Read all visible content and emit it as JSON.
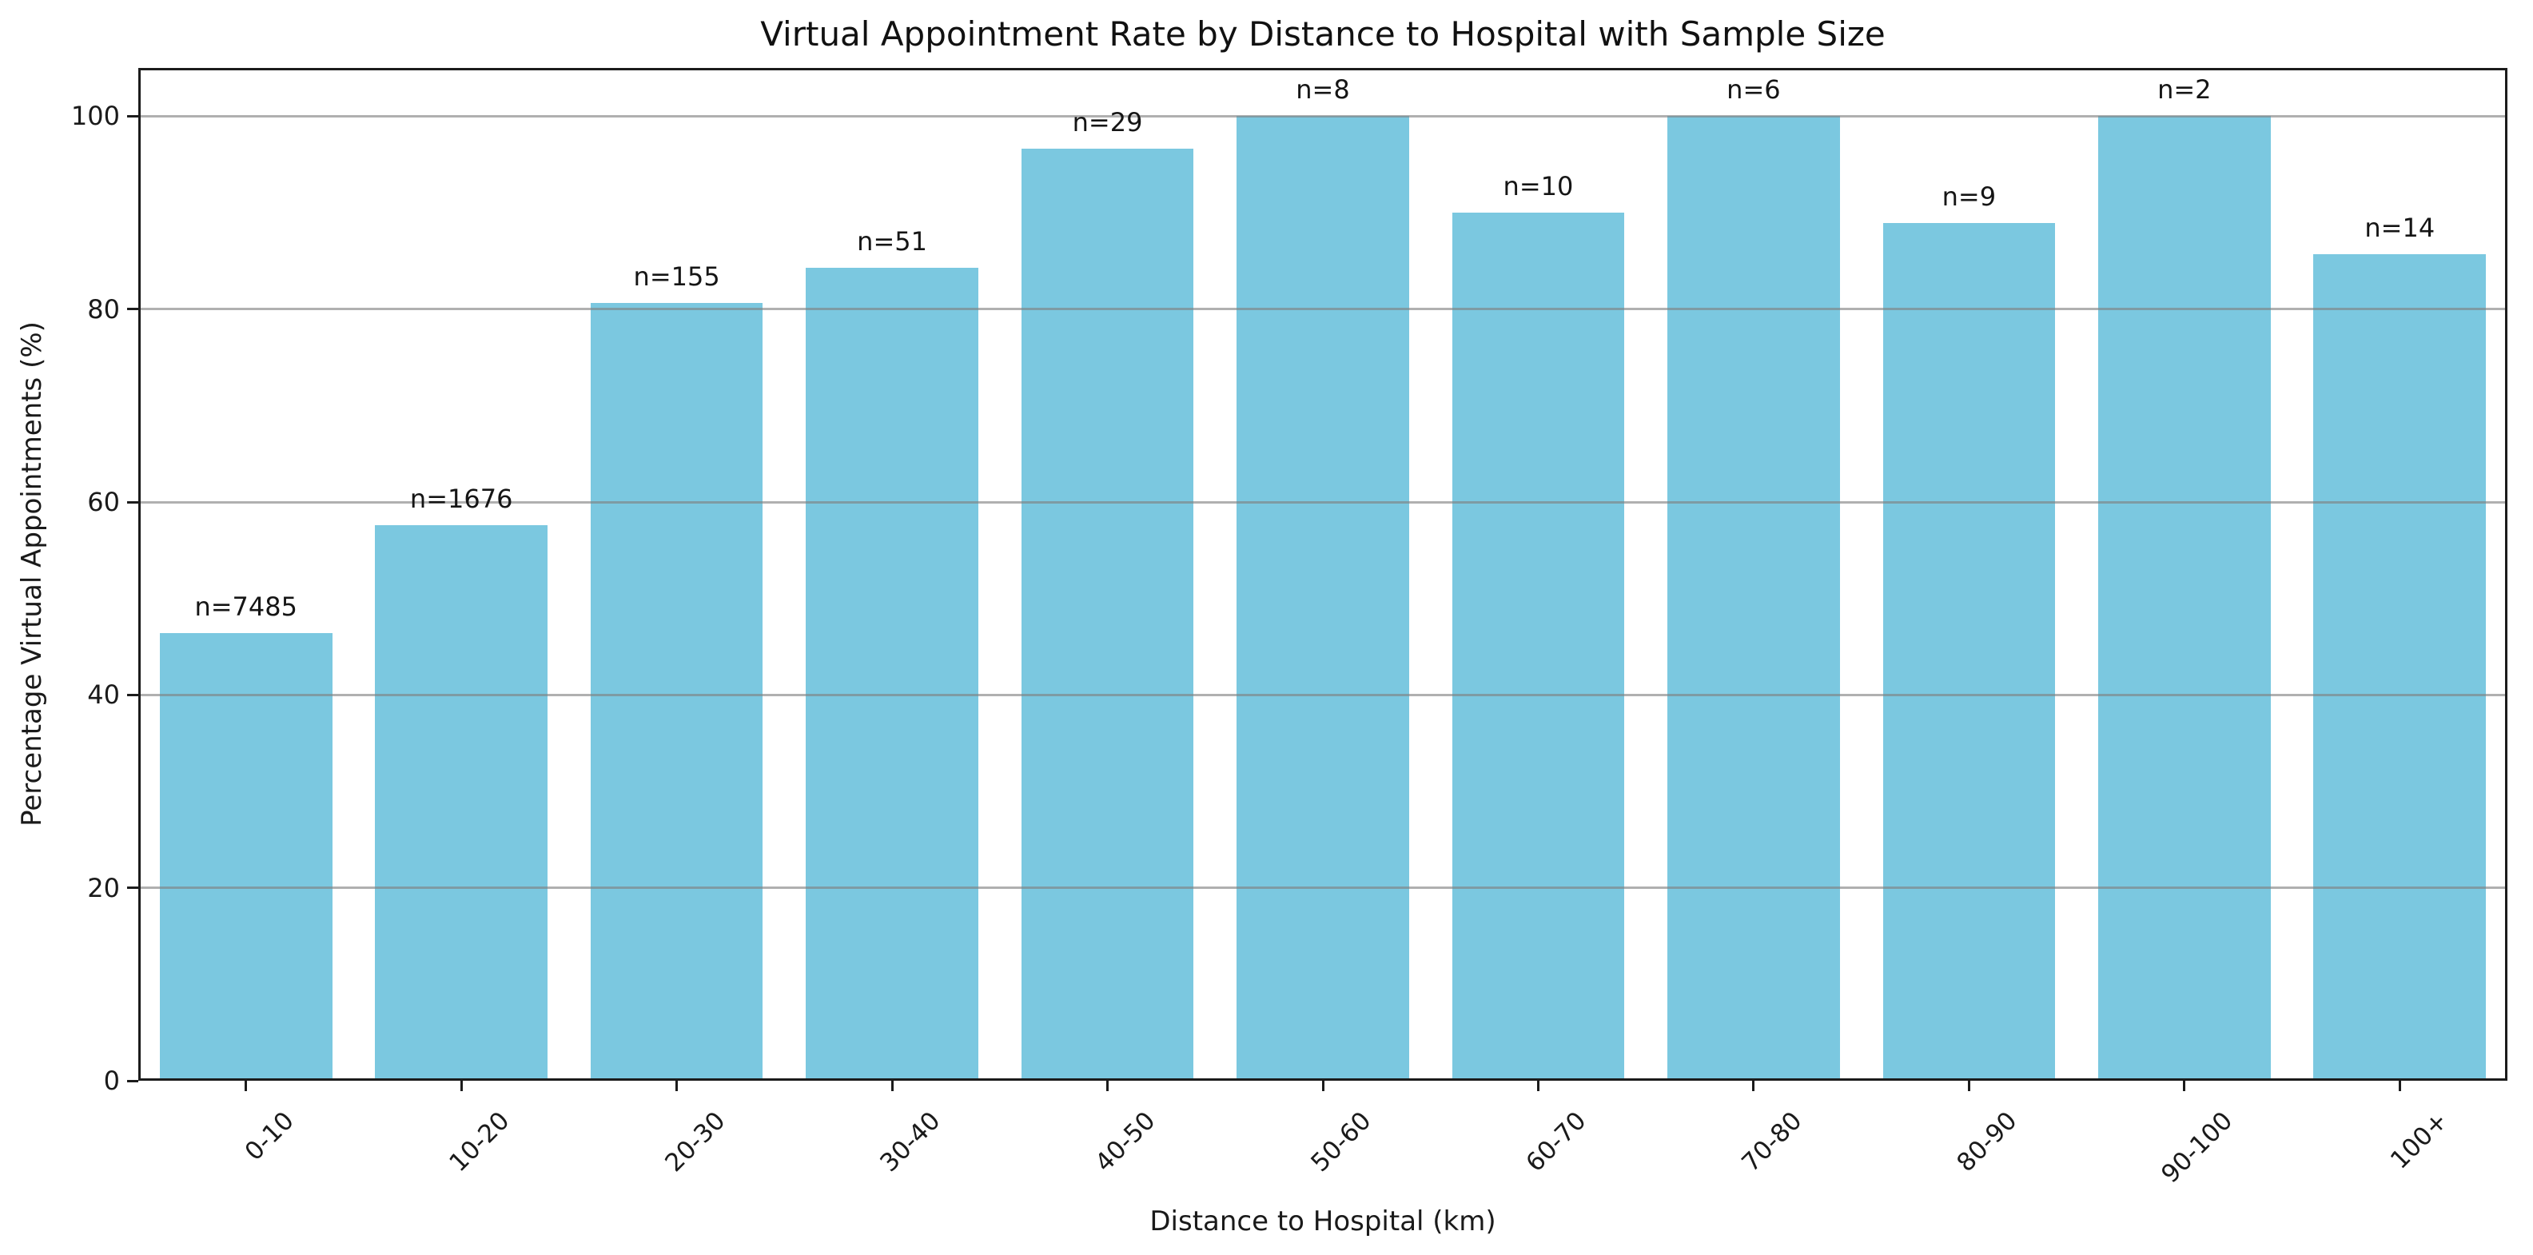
{
  "chart_data": {
    "type": "bar",
    "title": "Virtual Appointment Rate by Distance to Hospital with Sample Size",
    "xlabel": "Distance to Hospital (km)",
    "ylabel": "Percentage Virtual Appointments (%)",
    "categories": [
      "0-10",
      "10-20",
      "20-30",
      "30-40",
      "40-50",
      "50-60",
      "60-70",
      "70-80",
      "80-90",
      "90-100",
      "100+"
    ],
    "values": [
      46.4,
      57.6,
      80.6,
      84.3,
      96.6,
      100,
      90,
      100,
      88.9,
      100,
      85.7
    ],
    "sample_sizes": [
      7485,
      1676,
      155,
      51,
      29,
      8,
      10,
      6,
      9,
      2,
      14
    ],
    "bar_labels": [
      "n=7485",
      "n=1676",
      "n=155",
      "n=51",
      "n=29",
      "n=8",
      "n=10",
      "n=6",
      "n=9",
      "n=2",
      "n=14"
    ],
    "yticks": [
      0,
      20,
      40,
      60,
      80,
      100
    ],
    "ylim": [
      0,
      105
    ],
    "grid": "horizontal-over-bars",
    "legend": "none",
    "bar_width_fraction": 0.8,
    "colors": {
      "bar": "#7bc8e0",
      "grid": "#b0b0b0",
      "axis": "#1c1c1c",
      "background": "#ffffff",
      "text": "#1a1a1a"
    }
  }
}
